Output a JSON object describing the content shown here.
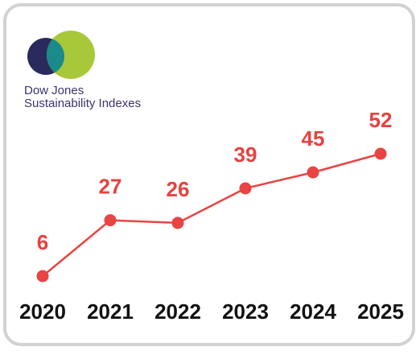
{
  "chart_data": {
    "type": "line",
    "logo_lines": [
      "Dow Jones",
      "Sustainability Indexes"
    ],
    "categories": [
      "2020",
      "2021",
      "2022",
      "2023",
      "2024",
      "2025"
    ],
    "values": [
      6,
      27,
      26,
      39,
      45,
      52
    ],
    "color": "#e84444"
  }
}
